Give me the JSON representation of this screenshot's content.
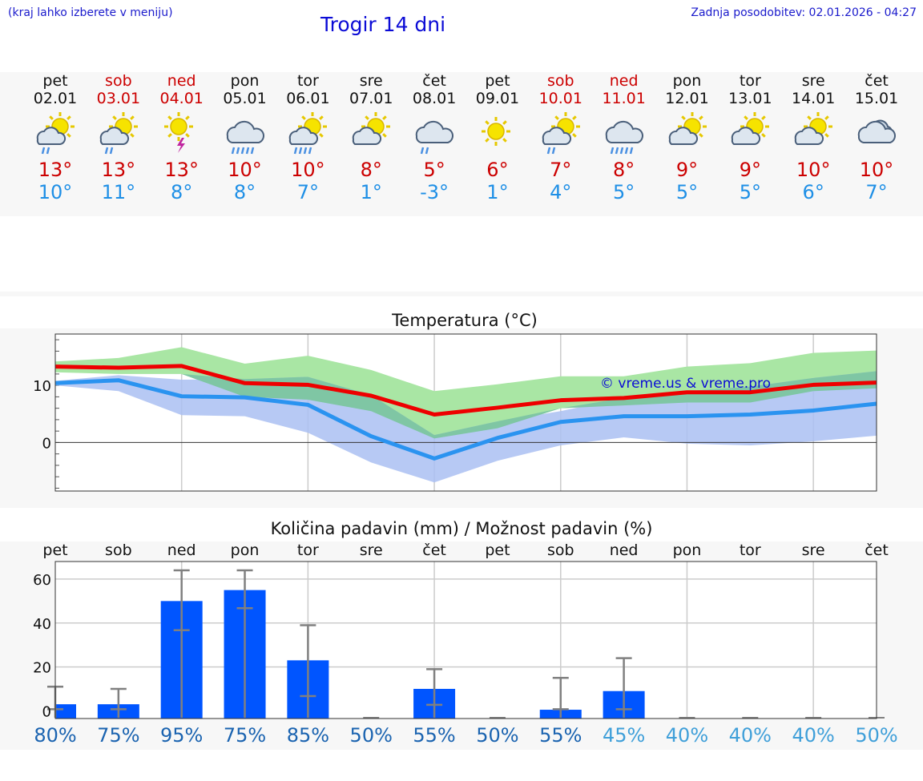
{
  "header": {
    "menu_hint": "(kraj lahko izberete v meniju)",
    "title": "Trogir 14 dni",
    "updated": "Zadnja posodobitev: 02.01.2026 - 04:27"
  },
  "days": [
    {
      "name": "pet",
      "date": "02.01",
      "weekend": false,
      "icon": "partly-cloudy-rain-icon",
      "max": "13°",
      "min": "10°"
    },
    {
      "name": "sob",
      "date": "03.01",
      "weekend": true,
      "icon": "partly-cloudy-rain-icon",
      "max": "13°",
      "min": "11°"
    },
    {
      "name": "ned",
      "date": "04.01",
      "weekend": true,
      "icon": "sun-thunder-icon",
      "max": "13°",
      "min": "8°"
    },
    {
      "name": "pon",
      "date": "05.01",
      "weekend": false,
      "icon": "cloud-heavy-rain-icon",
      "max": "10°",
      "min": "8°"
    },
    {
      "name": "tor",
      "date": "06.01",
      "weekend": false,
      "icon": "partly-cloudy-heavy-rain-icon",
      "max": "10°",
      "min": "7°"
    },
    {
      "name": "sre",
      "date": "07.01",
      "weekend": false,
      "icon": "partly-cloudy-icon",
      "max": "8°",
      "min": "1°"
    },
    {
      "name": "čet",
      "date": "08.01",
      "weekend": false,
      "icon": "cloud-rain-icon",
      "max": "5°",
      "min": "-3°"
    },
    {
      "name": "pet",
      "date": "09.01",
      "weekend": false,
      "icon": "sun-icon",
      "max": "6°",
      "min": "1°"
    },
    {
      "name": "sob",
      "date": "10.01",
      "weekend": true,
      "icon": "partly-cloudy-rain-icon",
      "max": "7°",
      "min": "4°"
    },
    {
      "name": "ned",
      "date": "11.01",
      "weekend": true,
      "icon": "cloud-heavy-rain-icon",
      "max": "8°",
      "min": "5°"
    },
    {
      "name": "pon",
      "date": "12.01",
      "weekend": false,
      "icon": "partly-cloudy-icon",
      "max": "9°",
      "min": "5°"
    },
    {
      "name": "tor",
      "date": "13.01",
      "weekend": false,
      "icon": "partly-cloudy-icon",
      "max": "9°",
      "min": "5°"
    },
    {
      "name": "sre",
      "date": "14.01",
      "weekend": false,
      "icon": "partly-cloudy-icon",
      "max": "10°",
      "min": "6°"
    },
    {
      "name": "čet",
      "date": "15.01",
      "weekend": false,
      "icon": "cloudy-icon",
      "max": "10°",
      "min": "7°"
    }
  ],
  "colors": {
    "max_temp": "#ee0000",
    "min_temp": "#2a93f0",
    "max_band": "#a9e6a4",
    "min_band": "#aabff2",
    "overlap_band": "#7fc6a4",
    "bar": "#0055ff",
    "err": "#808080",
    "pct_dark": "#1a63b0",
    "pct_light": "#3f9fd9"
  },
  "chart_data": [
    {
      "type": "line",
      "title": "Temperatura (°C)",
      "watermark": "© vreme.us & vreme.pro",
      "yticks": [
        {
          "v": 10,
          "label": "10"
        },
        {
          "v": 0,
          "label": "0"
        }
      ],
      "ylim": [
        -8.5,
        19
      ],
      "x": [
        0,
        1,
        2,
        3,
        4,
        5,
        6,
        7,
        8,
        9,
        10,
        11,
        12,
        13
      ],
      "series": [
        {
          "name": "max",
          "values": [
            13.3,
            13.1,
            13.4,
            10.4,
            10.1,
            8.2,
            4.9,
            6.1,
            7.4,
            7.8,
            8.8,
            8.8,
            10.1,
            10.5
          ],
          "band_low": [
            12.3,
            12.0,
            12.0,
            8.0,
            7.5,
            5.5,
            0.7,
            2.5,
            6.0,
            6.5,
            7.0,
            7.0,
            9.0,
            9.5
          ],
          "band_high": [
            14.2,
            14.8,
            16.7,
            13.8,
            15.2,
            12.7,
            9.0,
            10.2,
            11.6,
            11.6,
            13.3,
            13.9,
            15.7,
            16.1
          ]
        },
        {
          "name": "min",
          "values": [
            10.4,
            10.9,
            8.1,
            7.9,
            6.6,
            1.1,
            -2.8,
            0.8,
            3.6,
            4.6,
            4.6,
            4.9,
            5.6,
            6.8
          ],
          "band_low": [
            10.0,
            9.0,
            4.8,
            4.6,
            1.7,
            -3.5,
            -7.0,
            -3.2,
            -0.5,
            0.9,
            -0.2,
            -0.5,
            0.2,
            1.2
          ],
          "band_high": [
            10.8,
            11.8,
            11.0,
            11.1,
            11.5,
            8.3,
            1.3,
            3.7,
            5.5,
            7.8,
            9.0,
            9.8,
            11.3,
            12.5
          ]
        }
      ]
    },
    {
      "type": "bar",
      "title": "Količina padavin (mm) / Možnost padavin (%)",
      "categories": [
        "pet",
        "sob",
        "ned",
        "pon",
        "tor",
        "sre",
        "čet",
        "pet",
        "sob",
        "ned",
        "pon",
        "tor",
        "sre",
        "čet"
      ],
      "values": [
        3,
        3,
        50,
        55,
        23,
        0,
        10,
        0,
        0.5,
        9,
        0,
        0,
        0,
        0
      ],
      "err_high": [
        11,
        10,
        64,
        64,
        39,
        0,
        19,
        0,
        15,
        24,
        0,
        0,
        0,
        0
      ],
      "err_low": [
        0,
        0,
        36,
        46,
        6,
        0,
        2,
        0,
        0,
        0,
        0,
        0,
        0,
        0
      ],
      "yticks": [
        {
          "v": 60,
          "label": "60"
        },
        {
          "v": 40,
          "label": "40"
        },
        {
          "v": 20,
          "label": "20"
        },
        {
          "v": 0,
          "label": "0"
        }
      ],
      "ylim": [
        -3.5,
        68
      ],
      "chance": [
        "80%",
        "75%",
        "95%",
        "75%",
        "85%",
        "50%",
        "55%",
        "50%",
        "55%",
        "45%",
        "40%",
        "40%",
        "40%",
        "50%"
      ],
      "chance_dark": [
        true,
        true,
        true,
        true,
        true,
        true,
        true,
        true,
        true,
        false,
        false,
        false,
        false,
        false
      ]
    }
  ]
}
